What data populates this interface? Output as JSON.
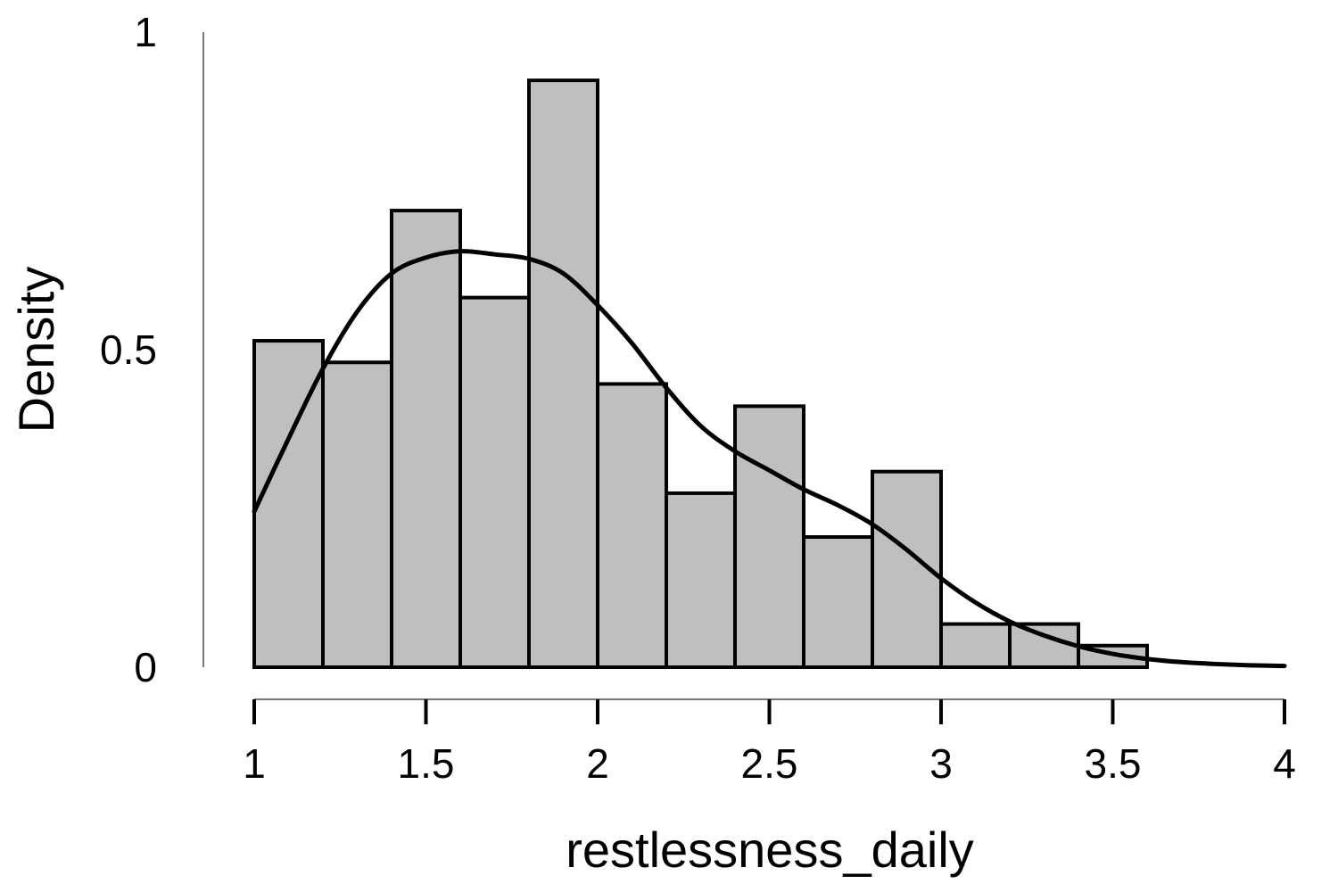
{
  "chart_data": {
    "type": "bar",
    "subtype": "histogram-with-density-curve",
    "title": "",
    "xlabel": "restlessness_daily",
    "ylabel": "Density",
    "xlim": [
      1,
      4
    ],
    "ylim": [
      0,
      1
    ],
    "x_ticks": [
      {
        "value": 1,
        "label": "1"
      },
      {
        "value": 1.5,
        "label": "1.5"
      },
      {
        "value": 2,
        "label": "2"
      },
      {
        "value": 2.5,
        "label": "2.5"
      },
      {
        "value": 3,
        "label": "3"
      },
      {
        "value": 3.5,
        "label": "3.5"
      },
      {
        "value": 4,
        "label": "4"
      }
    ],
    "y_ticks": [
      {
        "value": 0,
        "label": "0"
      },
      {
        "value": 0.5,
        "label": "0.5"
      },
      {
        "value": 1,
        "label": "1"
      }
    ],
    "bins": [
      {
        "start": 1.0,
        "end": 1.2,
        "density": 0.514
      },
      {
        "start": 1.2,
        "end": 1.4,
        "density": 0.48
      },
      {
        "start": 1.4,
        "end": 1.6,
        "density": 0.719
      },
      {
        "start": 1.6,
        "end": 1.8,
        "density": 0.582
      },
      {
        "start": 1.8,
        "end": 2.0,
        "density": 0.924
      },
      {
        "start": 2.0,
        "end": 2.2,
        "density": 0.446
      },
      {
        "start": 2.2,
        "end": 2.4,
        "density": 0.274
      },
      {
        "start": 2.4,
        "end": 2.6,
        "density": 0.411
      },
      {
        "start": 2.6,
        "end": 2.8,
        "density": 0.205
      },
      {
        "start": 2.8,
        "end": 3.0,
        "density": 0.308
      },
      {
        "start": 3.0,
        "end": 3.2,
        "density": 0.068
      },
      {
        "start": 3.2,
        "end": 3.4,
        "density": 0.068
      },
      {
        "start": 3.4,
        "end": 3.6,
        "density": 0.034
      }
    ],
    "density_curve": {
      "x": [
        1.0,
        1.1,
        1.2,
        1.3,
        1.4,
        1.5,
        1.6,
        1.7,
        1.8,
        1.9,
        2.0,
        2.1,
        2.2,
        2.3,
        2.4,
        2.5,
        2.6,
        2.7,
        2.8,
        2.9,
        3.0,
        3.1,
        3.2,
        3.3,
        3.4,
        3.5,
        3.6,
        3.7,
        3.8,
        3.9,
        4.0
      ],
      "y": [
        0.245,
        0.36,
        0.47,
        0.56,
        0.62,
        0.645,
        0.655,
        0.65,
        0.643,
        0.62,
        0.57,
        0.51,
        0.44,
        0.38,
        0.34,
        0.31,
        0.28,
        0.255,
        0.225,
        0.185,
        0.14,
        0.102,
        0.072,
        0.05,
        0.033,
        0.021,
        0.013,
        0.008,
        0.005,
        0.003,
        0.002
      ]
    },
    "bar_color": "#bfbfbf",
    "bar_edge_color": "#000000",
    "curve_color": "#000000",
    "grid": false,
    "legend": "none"
  }
}
